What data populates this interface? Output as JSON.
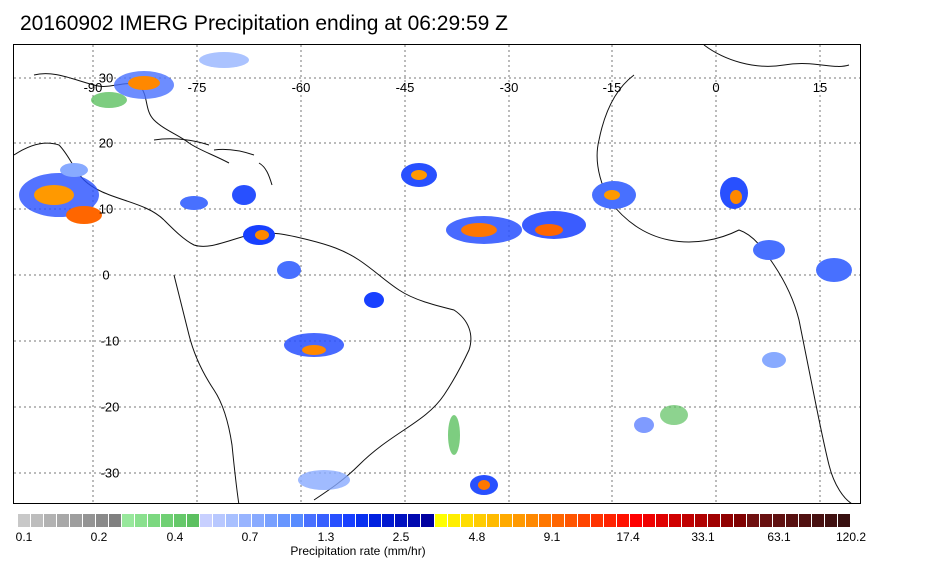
{
  "title": "20160902 IMERG Precipitation ending at 06:29:59 Z",
  "map": {
    "lon_labels": [
      "-90",
      "-75",
      "-60",
      "-45",
      "-30",
      "-15",
      "0",
      "15"
    ],
    "lat_labels": [
      "30",
      "20",
      "10",
      "0",
      "-10",
      "-20",
      "-30"
    ],
    "grid": true
  },
  "colorbar": {
    "label": "Precipitation rate (mm/hr)",
    "ticks": [
      "0.1",
      "0.2",
      "0.4",
      "0.7",
      "1.3",
      "2.5",
      "4.8",
      "9.1",
      "17.4",
      "33.1",
      "63.1",
      "120.2"
    ],
    "colors": [
      "#c8c8c8",
      "#bdbdbd",
      "#b2b2b2",
      "#a8a8a8",
      "#9e9e9e",
      "#949494",
      "#8a8a8a",
      "#808080",
      "#98e89c",
      "#8ae08e",
      "#7cd880",
      "#70d074",
      "#66c86a",
      "#5cc060",
      "#c8d0ff",
      "#b8c8ff",
      "#a8c0ff",
      "#98b4ff",
      "#88aaff",
      "#78a0ff",
      "#6896ff",
      "#588cff",
      "#4870ff",
      "#3860ff",
      "#2850ff",
      "#1840ff",
      "#0830f0",
      "#0020e0",
      "#0018d0",
      "#0010c0",
      "#0008b0",
      "#0000a0",
      "#ffff00",
      "#ffee00",
      "#ffdd00",
      "#ffcc00",
      "#ffbb00",
      "#ffaa00",
      "#ff9900",
      "#ff8800",
      "#ff7700",
      "#ff6600",
      "#ff5500",
      "#ff4400",
      "#ff3300",
      "#ff2200",
      "#ff1100",
      "#ff0000",
      "#f00000",
      "#e00000",
      "#d00000",
      "#c00000",
      "#b00000",
      "#a00000",
      "#900000",
      "#800000",
      "#701010",
      "#681010",
      "#601010",
      "#581010",
      "#501010",
      "#481010",
      "#401010",
      "#381010"
    ]
  }
}
